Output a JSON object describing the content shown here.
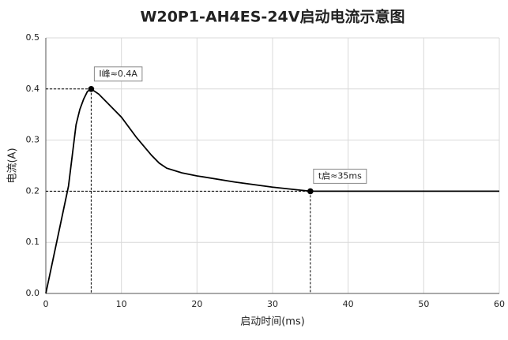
{
  "chart_data": {
    "type": "line",
    "title": "W20P1-AH4ES-24V启动电流示意图",
    "x_label": "启动时间(ms)",
    "y_label": "电流(A)",
    "x": [
      0,
      1,
      2,
      3,
      3.5,
      4,
      4.5,
      5,
      5.5,
      6,
      7,
      8,
      9,
      10,
      12,
      14,
      15,
      16,
      18,
      20,
      25,
      30,
      35,
      40,
      50,
      60
    ],
    "series": [
      {
        "color": "#000000",
        "values": [
          0,
          0.07,
          0.14,
          0.21,
          0.27,
          0.33,
          0.36,
          0.38,
          0.395,
          0.4,
          0.39,
          0.375,
          0.36,
          0.345,
          0.305,
          0.27,
          0.255,
          0.245,
          0.236,
          0.23,
          0.218,
          0.208,
          0.2,
          0.2,
          0.2,
          0.2
        ]
      }
    ],
    "markers": [
      {
        "x": 6,
        "y": 0.4,
        "label": "I峰≈0.4A"
      },
      {
        "x": 35,
        "y": 0.2,
        "label": "t启≈35ms"
      }
    ],
    "xlim": [
      0,
      60
    ],
    "xticks": [
      0,
      10,
      20,
      30,
      40,
      50,
      60
    ],
    "ylim": [
      0,
      0.5
    ],
    "yticks": [
      {
        "value": 0,
        "label": "0.0"
      },
      0.1,
      0.2,
      0.3,
      0.4,
      0.5
    ],
    "grid": true
  }
}
